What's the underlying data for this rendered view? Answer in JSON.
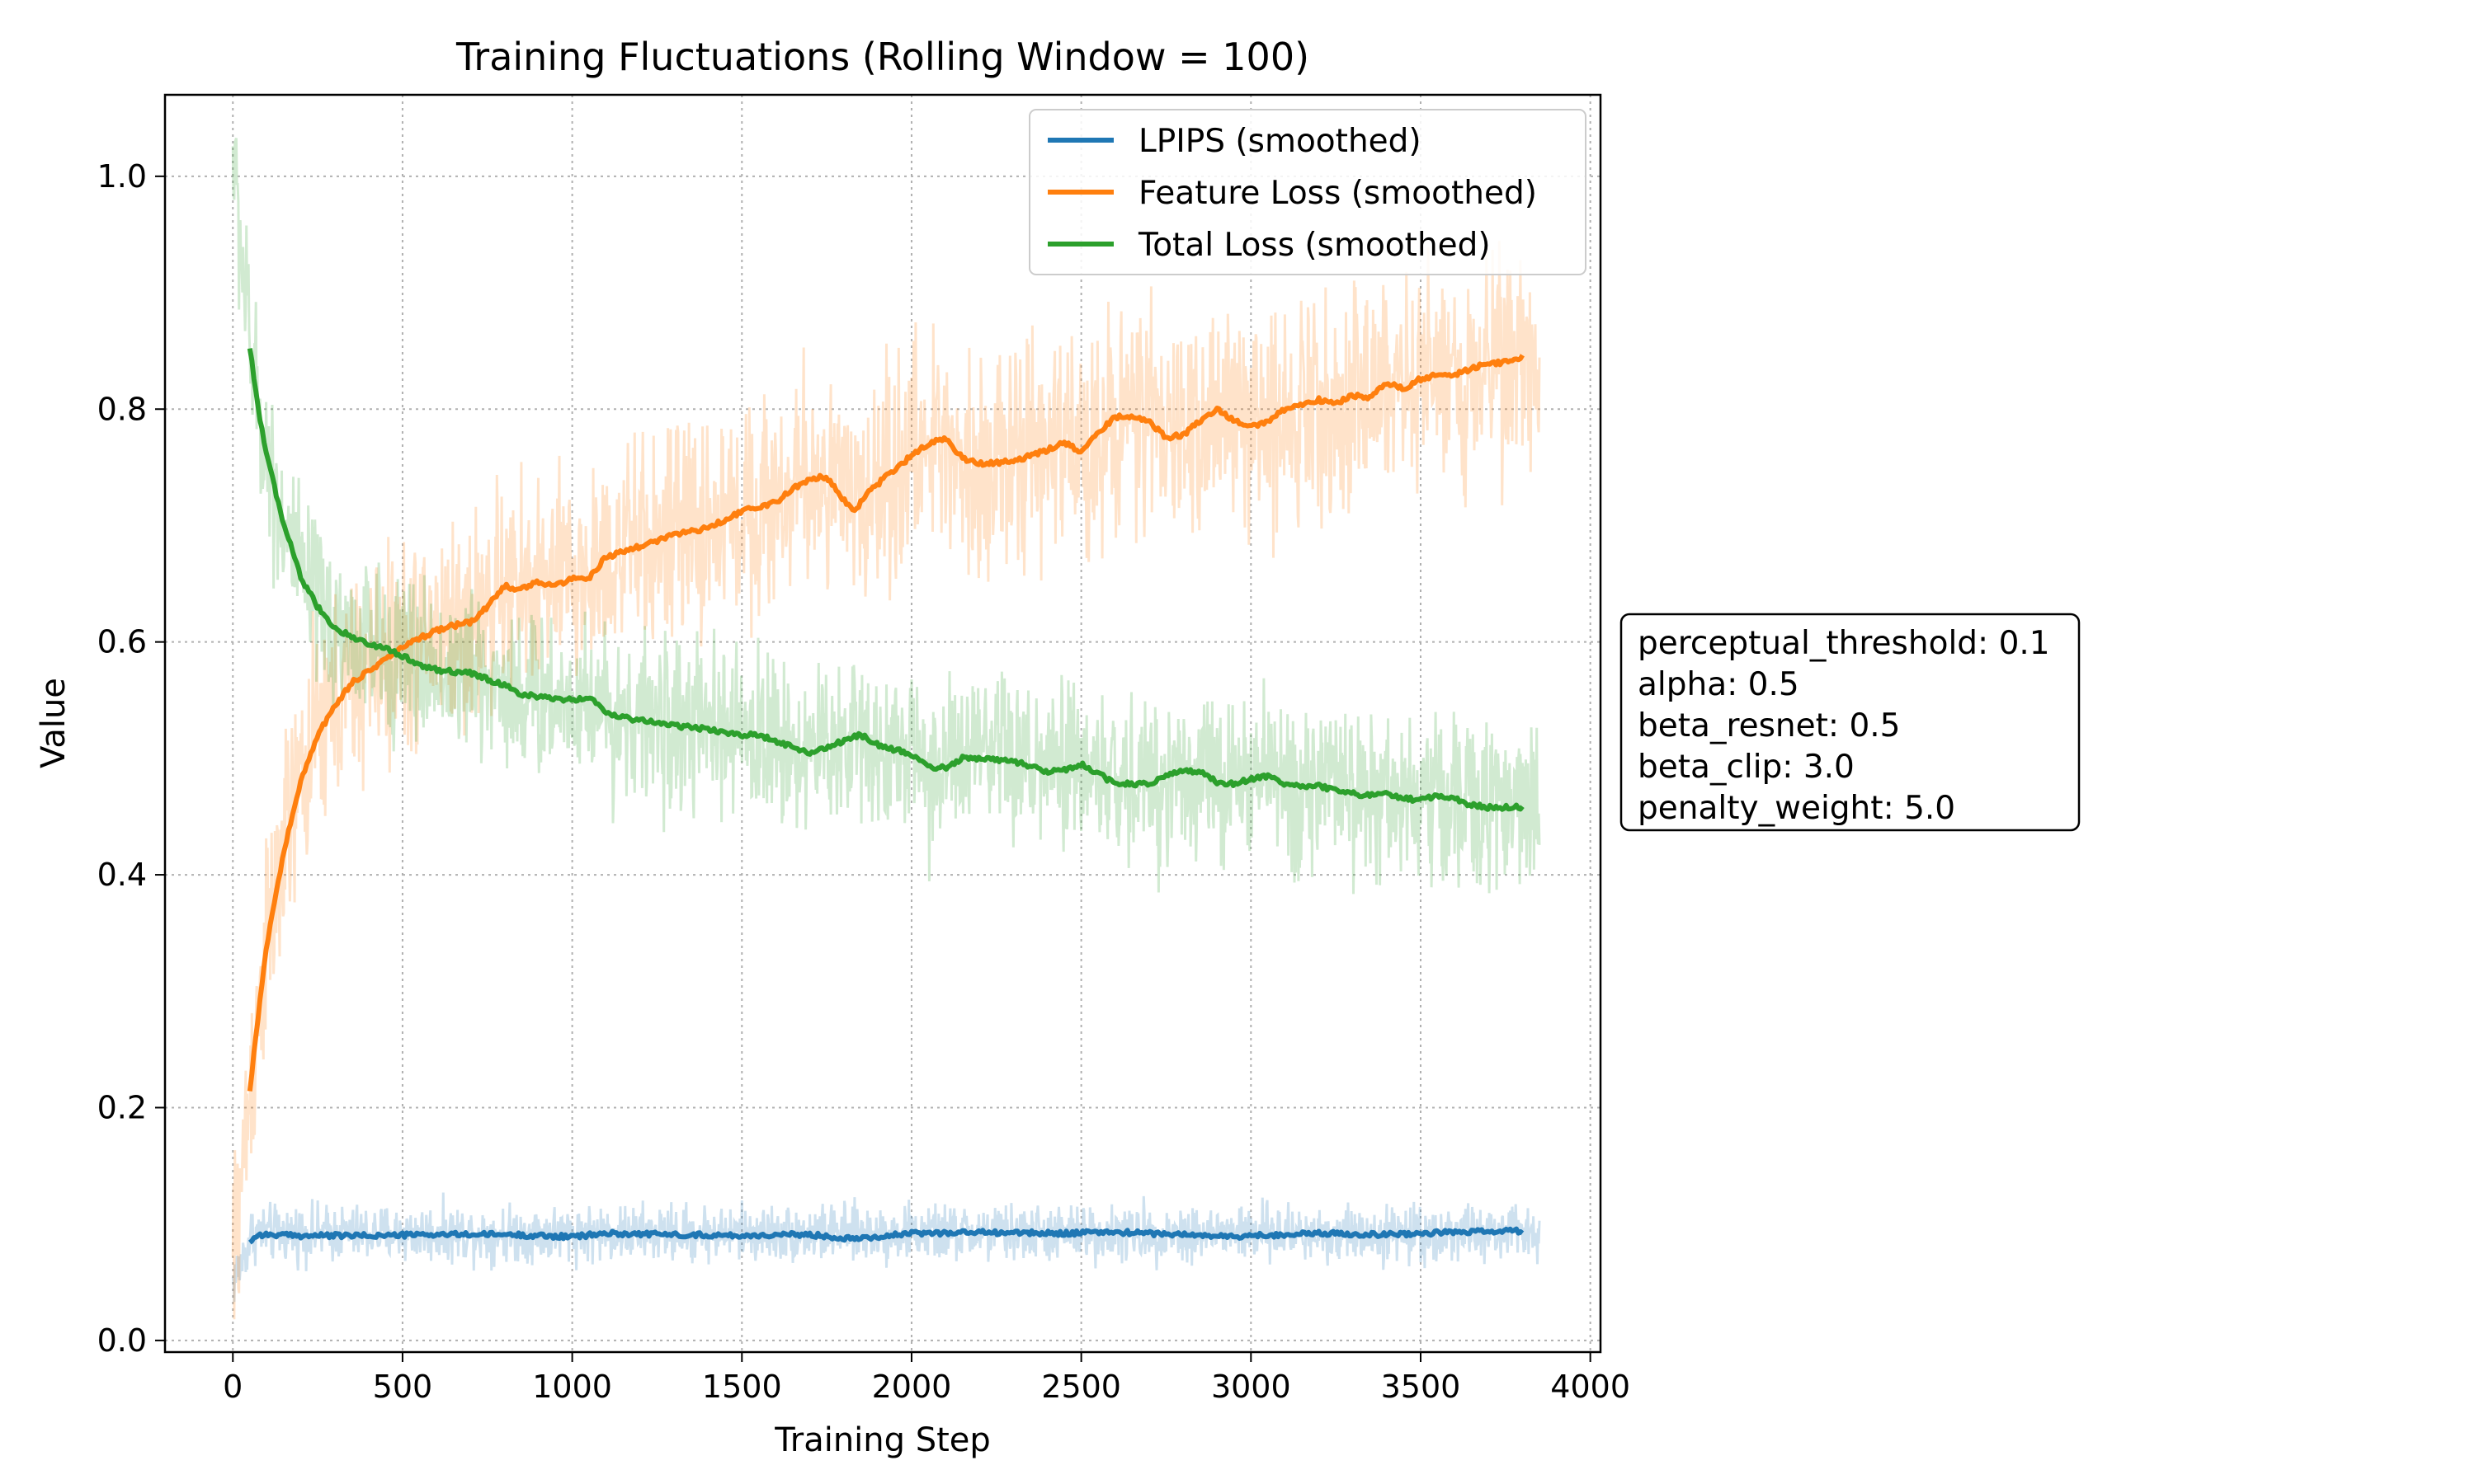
{
  "chart_data": {
    "type": "line",
    "title": "Training Fluctuations (Rolling Window = 100)",
    "xlabel": "Training Step",
    "ylabel": "Value",
    "xlim": [
      -200,
      4030
    ],
    "ylim": [
      -0.01,
      1.07
    ],
    "xticks": [
      0,
      500,
      1000,
      1500,
      2000,
      2500,
      3000,
      3500,
      4000
    ],
    "yticks": [
      0.0,
      0.2,
      0.4,
      0.6,
      0.8,
      1.0
    ],
    "xtick_labels": [
      "0",
      "500",
      "1000",
      "1500",
      "2000",
      "2500",
      "3000",
      "3500",
      "4000"
    ],
    "ytick_labels": [
      "0.0",
      "0.2",
      "0.4",
      "0.6",
      "0.8",
      "1.0"
    ],
    "grid": true,
    "legend_position": "top-right",
    "series": [
      {
        "name": "LPIPS (smoothed)",
        "color": "#1f77b4",
        "raw_band": {
          "x_range": [
            0,
            3850
          ],
          "start": 0.05,
          "mean": 0.092,
          "noise": 0.012
        },
        "points": [
          [
            50,
            0.085
          ],
          [
            75,
            0.091
          ],
          [
            200,
            0.09
          ],
          [
            400,
            0.09
          ],
          [
            600,
            0.091
          ],
          [
            800,
            0.091
          ],
          [
            1000,
            0.089
          ],
          [
            1100,
            0.092
          ],
          [
            1300,
            0.091
          ],
          [
            1500,
            0.09
          ],
          [
            1700,
            0.091
          ],
          [
            1800,
            0.088
          ],
          [
            1900,
            0.089
          ],
          [
            2000,
            0.092
          ],
          [
            2200,
            0.093
          ],
          [
            2400,
            0.092
          ],
          [
            2600,
            0.093
          ],
          [
            2800,
            0.091
          ],
          [
            2950,
            0.089
          ],
          [
            3000,
            0.09
          ],
          [
            3200,
            0.092
          ],
          [
            3400,
            0.091
          ],
          [
            3600,
            0.093
          ],
          [
            3800,
            0.094
          ]
        ]
      },
      {
        "name": "Feature Loss (smoothed)",
        "color": "#ff7f0e",
        "raw_band": {
          "x_range": [
            0,
            3850
          ],
          "start": 0.06,
          "noise": 0.045
        },
        "points": [
          [
            50,
            0.215
          ],
          [
            75,
            0.28
          ],
          [
            100,
            0.34
          ],
          [
            125,
            0.38
          ],
          [
            150,
            0.42
          ],
          [
            175,
            0.45
          ],
          [
            200,
            0.48
          ],
          [
            250,
            0.52
          ],
          [
            300,
            0.545
          ],
          [
            350,
            0.565
          ],
          [
            400,
            0.575
          ],
          [
            450,
            0.585
          ],
          [
            500,
            0.595
          ],
          [
            550,
            0.603
          ],
          [
            600,
            0.61
          ],
          [
            650,
            0.614
          ],
          [
            700,
            0.617
          ],
          [
            750,
            0.63
          ],
          [
            800,
            0.648
          ],
          [
            850,
            0.645
          ],
          [
            900,
            0.652
          ],
          [
            950,
            0.648
          ],
          [
            1000,
            0.655
          ],
          [
            1050,
            0.655
          ],
          [
            1100,
            0.673
          ],
          [
            1200,
            0.682
          ],
          [
            1300,
            0.692
          ],
          [
            1400,
            0.698
          ],
          [
            1500,
            0.712
          ],
          [
            1600,
            0.72
          ],
          [
            1650,
            0.732
          ],
          [
            1700,
            0.74
          ],
          [
            1750,
            0.742
          ],
          [
            1800,
            0.722
          ],
          [
            1830,
            0.712
          ],
          [
            1870,
            0.728
          ],
          [
            1950,
            0.748
          ],
          [
            2000,
            0.76
          ],
          [
            2050,
            0.77
          ],
          [
            2100,
            0.775
          ],
          [
            2150,
            0.758
          ],
          [
            2200,
            0.753
          ],
          [
            2300,
            0.755
          ],
          [
            2400,
            0.765
          ],
          [
            2450,
            0.772
          ],
          [
            2500,
            0.762
          ],
          [
            2550,
            0.78
          ],
          [
            2600,
            0.793
          ],
          [
            2650,
            0.794
          ],
          [
            2700,
            0.79
          ],
          [
            2750,
            0.775
          ],
          [
            2800,
            0.778
          ],
          [
            2850,
            0.79
          ],
          [
            2900,
            0.8
          ],
          [
            2950,
            0.79
          ],
          [
            3000,
            0.785
          ],
          [
            3050,
            0.79
          ],
          [
            3100,
            0.8
          ],
          [
            3200,
            0.808
          ],
          [
            3250,
            0.805
          ],
          [
            3300,
            0.812
          ],
          [
            3350,
            0.81
          ],
          [
            3400,
            0.822
          ],
          [
            3450,
            0.818
          ],
          [
            3500,
            0.826
          ],
          [
            3550,
            0.83
          ],
          [
            3600,
            0.829
          ],
          [
            3650,
            0.835
          ],
          [
            3700,
            0.84
          ],
          [
            3750,
            0.84
          ],
          [
            3800,
            0.845
          ]
        ]
      },
      {
        "name": "Total Loss (smoothed)",
        "color": "#2ca02c",
        "raw_band": {
          "x_range": [
            0,
            3850
          ],
          "start": 1.02,
          "noise": 0.035
        },
        "points": [
          [
            50,
            0.853
          ],
          [
            75,
            0.8
          ],
          [
            100,
            0.76
          ],
          [
            125,
            0.73
          ],
          [
            150,
            0.7
          ],
          [
            175,
            0.68
          ],
          [
            200,
            0.655
          ],
          [
            250,
            0.63
          ],
          [
            300,
            0.612
          ],
          [
            350,
            0.605
          ],
          [
            400,
            0.598
          ],
          [
            450,
            0.595
          ],
          [
            500,
            0.588
          ],
          [
            550,
            0.58
          ],
          [
            600,
            0.576
          ],
          [
            700,
            0.573
          ],
          [
            800,
            0.563
          ],
          [
            850,
            0.555
          ],
          [
            900,
            0.553
          ],
          [
            1000,
            0.55
          ],
          [
            1050,
            0.553
          ],
          [
            1100,
            0.54
          ],
          [
            1150,
            0.535
          ],
          [
            1200,
            0.533
          ],
          [
            1300,
            0.528
          ],
          [
            1400,
            0.525
          ],
          [
            1500,
            0.52
          ],
          [
            1550,
            0.52
          ],
          [
            1600,
            0.515
          ],
          [
            1700,
            0.505
          ],
          [
            1750,
            0.51
          ],
          [
            1800,
            0.515
          ],
          [
            1850,
            0.52
          ],
          [
            1900,
            0.512
          ],
          [
            2000,
            0.503
          ],
          [
            2050,
            0.492
          ],
          [
            2100,
            0.492
          ],
          [
            2150,
            0.5
          ],
          [
            2200,
            0.5
          ],
          [
            2300,
            0.498
          ],
          [
            2400,
            0.488
          ],
          [
            2450,
            0.49
          ],
          [
            2500,
            0.495
          ],
          [
            2550,
            0.487
          ],
          [
            2600,
            0.478
          ],
          [
            2700,
            0.478
          ],
          [
            2800,
            0.49
          ],
          [
            2850,
            0.488
          ],
          [
            2900,
            0.48
          ],
          [
            2950,
            0.478
          ],
          [
            3000,
            0.482
          ],
          [
            3050,
            0.485
          ],
          [
            3100,
            0.478
          ],
          [
            3200,
            0.476
          ],
          [
            3300,
            0.47
          ],
          [
            3350,
            0.468
          ],
          [
            3400,
            0.47
          ],
          [
            3450,
            0.465
          ],
          [
            3500,
            0.465
          ],
          [
            3550,
            0.468
          ],
          [
            3600,
            0.465
          ],
          [
            3650,
            0.46
          ],
          [
            3700,
            0.458
          ],
          [
            3750,
            0.458
          ],
          [
            3800,
            0.458
          ]
        ]
      }
    ],
    "annotation": {
      "lines": [
        "perceptual_threshold: 0.1",
        "alpha: 0.5",
        "beta_resnet: 0.5",
        "beta_clip: 3.0",
        "penalty_weight: 5.0"
      ],
      "position": "right-middle"
    }
  }
}
